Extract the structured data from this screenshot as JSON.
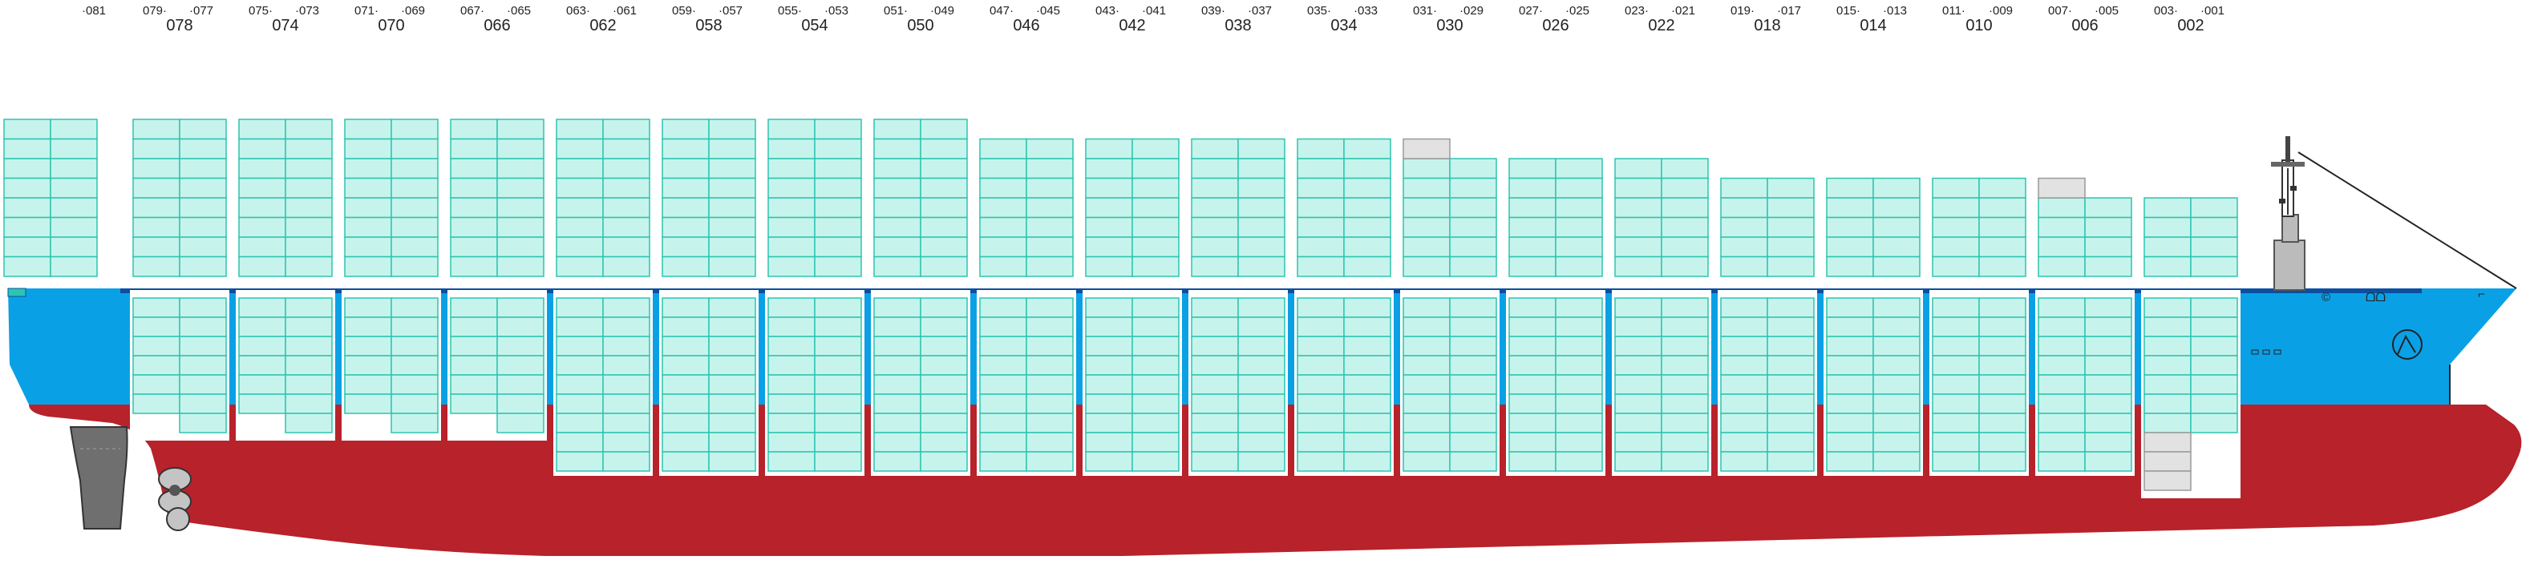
{
  "bay_labels": [
    {
      "bay": "",
      "aft": "",
      "fwd": "081"
    },
    {
      "bay": "078",
      "aft": "079",
      "fwd": "077"
    },
    {
      "bay": "074",
      "aft": "075",
      "fwd": "073"
    },
    {
      "bay": "070",
      "aft": "071",
      "fwd": "069"
    },
    {
      "bay": "066",
      "aft": "067",
      "fwd": "065"
    },
    {
      "bay": "062",
      "aft": "063",
      "fwd": "061"
    },
    {
      "bay": "058",
      "aft": "059",
      "fwd": "057"
    },
    {
      "bay": "054",
      "aft": "055",
      "fwd": "053"
    },
    {
      "bay": "050",
      "aft": "051",
      "fwd": "049"
    },
    {
      "bay": "046",
      "aft": "047",
      "fwd": "045"
    },
    {
      "bay": "042",
      "aft": "043",
      "fwd": "041"
    },
    {
      "bay": "038",
      "aft": "039",
      "fwd": "037"
    },
    {
      "bay": "034",
      "aft": "035",
      "fwd": "033"
    },
    {
      "bay": "030",
      "aft": "031",
      "fwd": "029"
    },
    {
      "bay": "026",
      "aft": "027",
      "fwd": "025"
    },
    {
      "bay": "022",
      "aft": "023",
      "fwd": "021"
    },
    {
      "bay": "018",
      "aft": "019",
      "fwd": "017"
    },
    {
      "bay": "014",
      "aft": "015",
      "fwd": "013"
    },
    {
      "bay": "010",
      "aft": "011",
      "fwd": "009"
    },
    {
      "bay": "006",
      "aft": "007",
      "fwd": "005"
    },
    {
      "bay": "002",
      "aft": "003",
      "fwd": "001"
    }
  ],
  "colors": {
    "hull_lower": "#b8222a",
    "hull_upper": "#0aa0e6",
    "container_fill": "#c6f4ec",
    "container_stroke": "#2ec4b0",
    "empty_slot_fill": "#e2e2e2",
    "empty_slot_stroke": "#9a9a9a",
    "rudder": "#6f6f6f",
    "propeller": "#c4c4c4",
    "superstructure": "#bbbbbb"
  },
  "icons": [
    "bridge-superstructure-icon",
    "funnel-logo-icon",
    "propeller-icon",
    "rudder-icon"
  ]
}
